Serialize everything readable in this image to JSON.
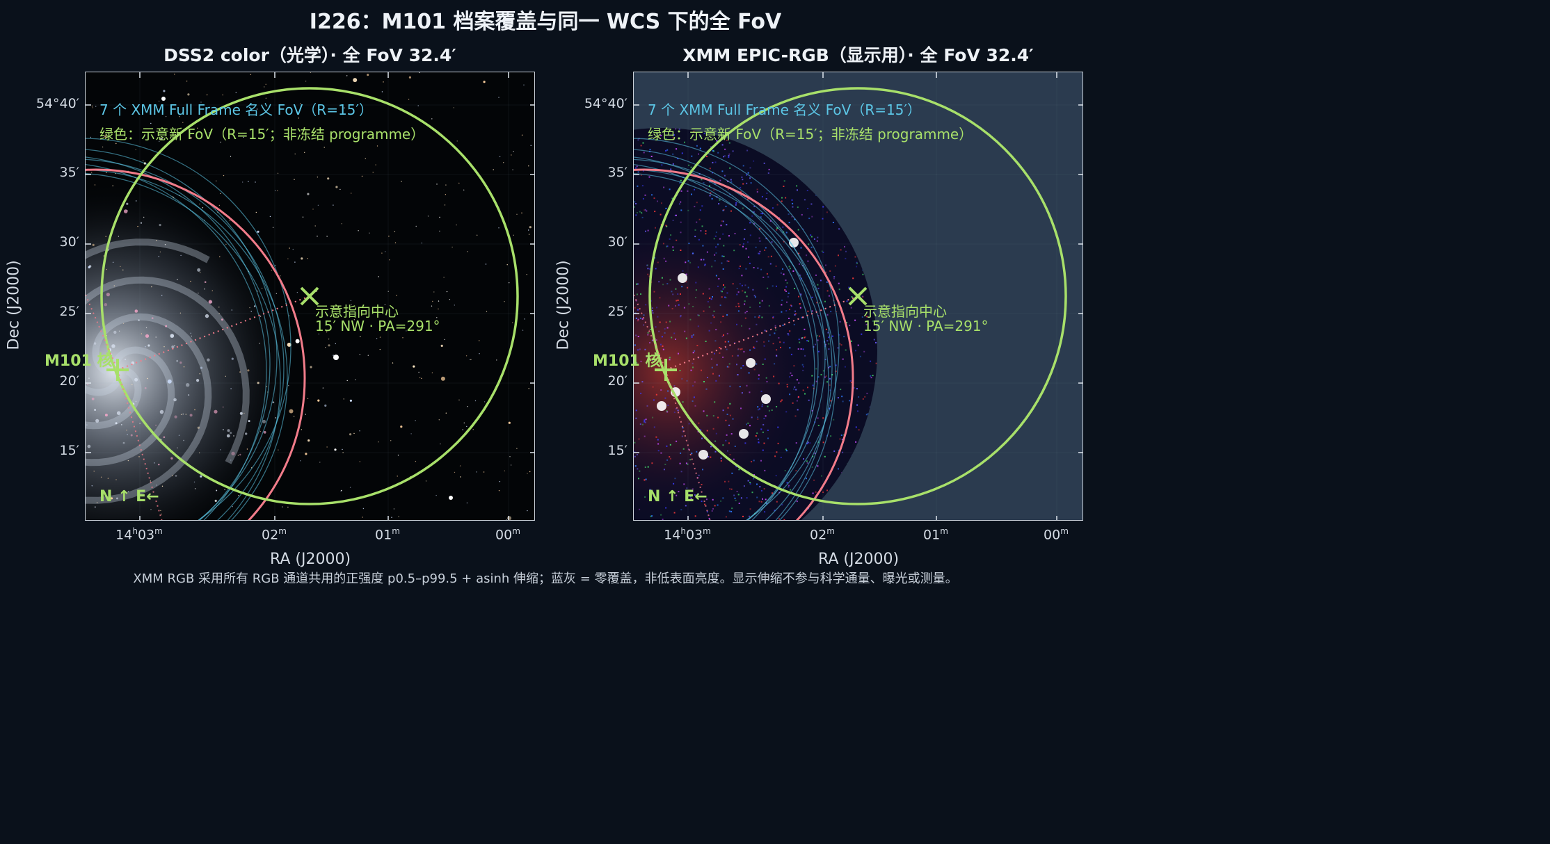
{
  "title": "I226：M101 档案覆盖与同一 WCS 下的全 FoV",
  "panels": [
    {
      "subtitle": "DSS2 color（光学）· 全 FoV 32.4′",
      "image": "optical-starfield-m101"
    },
    {
      "subtitle": "XMM EPIC-RGB（显示用）· 全 FoV 32.4′",
      "image": "xray-rgb-m101"
    }
  ],
  "annotations": {
    "legend_cyan": "7 个 XMM Full Frame 名义 FoV（R=15′）",
    "legend_green": "绿色：示意新 FoV（R=15′；非冻结 programme）",
    "pointing_line1": "示意指向中心",
    "pointing_line2": "15′ NW · PA=291°",
    "nucleus_label": "M101 核",
    "orientation": "N ↑  E←"
  },
  "axes": {
    "xlabel": "RA (J2000)",
    "ylabel": "Dec (J2000)",
    "yticks": [
      "54°40′",
      "35′",
      "30′",
      "25′",
      "20′",
      "15′"
    ],
    "xticks": [
      {
        "main": "14",
        "sup1": "h",
        "mid": "03",
        "sup2": "m"
      },
      {
        "main": "",
        "sup1": "",
        "mid": "02",
        "sup2": "m"
      },
      {
        "main": "",
        "sup1": "",
        "mid": "01",
        "sup2": "m"
      },
      {
        "main": "",
        "sup1": "",
        "mid": "00",
        "sup2": "m"
      }
    ]
  },
  "colors": {
    "cyan": "#5cc6e6",
    "green": "#a8e06a",
    "pink": "#f27c8a",
    "background": "#0a111b",
    "zero_coverage": "#2b3b4f"
  },
  "footer": "XMM RGB 采用所有 RGB 通道共用的正强度 p0.5–p99.5 + asinh 伸缩；蓝灰 = 零覆盖，非低表面亮度。显示伸缩不参与科学通量、曝光或测量。"
}
